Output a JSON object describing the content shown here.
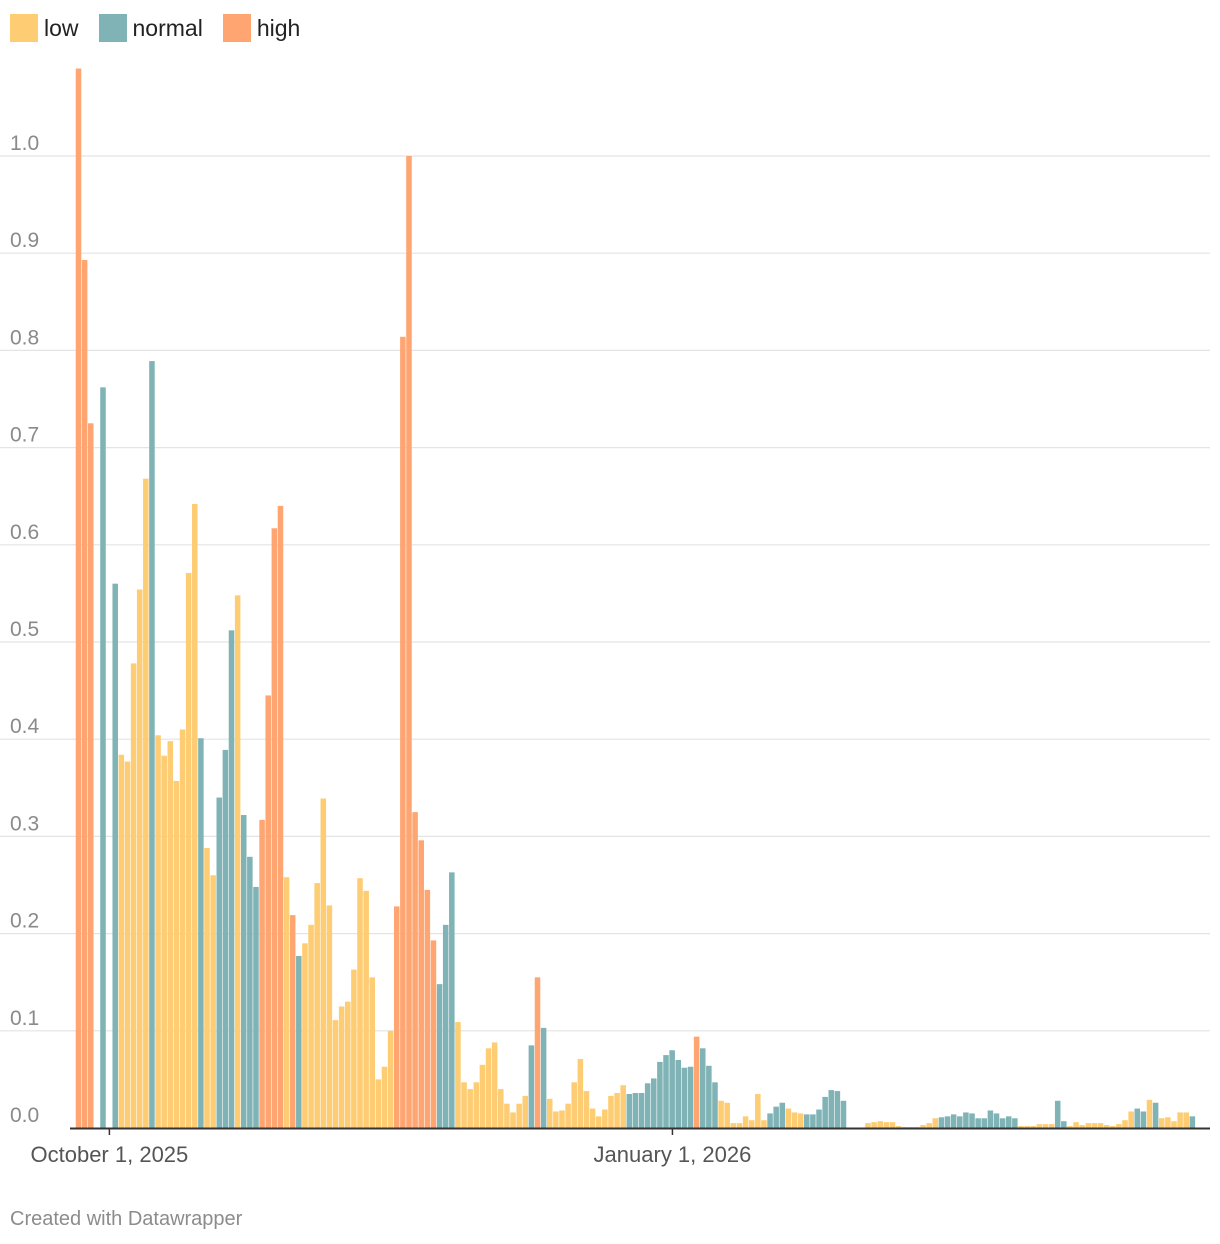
{
  "chart_data": {
    "type": "bar",
    "title": "",
    "xlabel": "",
    "ylabel": "",
    "ylim": [
      0,
      1.1
    ],
    "y_ticks": [
      "0.0",
      "0.1",
      "0.2",
      "0.3",
      "0.4",
      "0.5",
      "0.6",
      "0.7",
      "0.8",
      "0.9",
      "1.0"
    ],
    "x_tick_labels": [
      {
        "label": "October 1, 2025",
        "day_index": 0
      },
      {
        "label": "January 1, 2026",
        "day_index": 92
      }
    ],
    "grid": true,
    "legend_position": "top-left",
    "legend": [
      {
        "key": "low",
        "label": "low",
        "color": "#fecc72"
      },
      {
        "key": "normal",
        "label": "normal",
        "color": "#7fb3b5"
      },
      {
        "key": "high",
        "label": "high",
        "color": "#fea572"
      }
    ],
    "category_colors": {
      "low": "#fecc72",
      "normal": "#7fb3b5",
      "high": "#fea572"
    },
    "first_day_index": -5,
    "values": [
      1.09,
      0.893,
      0.725,
      0,
      0.762,
      0,
      0.56,
      0.384,
      0.377,
      0.478,
      0.554,
      0.668,
      0.789,
      0.404,
      0.383,
      0.398,
      0.357,
      0.41,
      0.571,
      0.642,
      0.401,
      0.288,
      0.26,
      0.34,
      0.389,
      0.512,
      0.548,
      0.322,
      0.279,
      0.248,
      0.317,
      0.445,
      0.617,
      0.64,
      0.258,
      0.219,
      0.177,
      0.19,
      0.209,
      0.252,
      0.339,
      0.229,
      0.111,
      0.125,
      0.13,
      0.163,
      0.257,
      0.244,
      0.155,
      0.05,
      0.063,
      0.1,
      0.228,
      0.814,
      1.0,
      0.325,
      0.296,
      0.245,
      0.193,
      0.148,
      0.209,
      0.263,
      0.109,
      0.047,
      0.04,
      0.047,
      0.065,
      0.082,
      0.088,
      0.04,
      0.025,
      0.016,
      0.025,
      0.033,
      0.085,
      0.155,
      0.103,
      0.03,
      0.017,
      0.018,
      0.025,
      0.047,
      0.071,
      0.038,
      0.02,
      0.012,
      0.019,
      0.033,
      0.036,
      0.044,
      0.035,
      0.036,
      0.036,
      0.046,
      0.051,
      0.068,
      0.075,
      0.08,
      0.07,
      0.062,
      0.063,
      0.094,
      0.082,
      0.064,
      0.047,
      0.028,
      0.026,
      0.005,
      0.005,
      0.012,
      0.008,
      0.035,
      0.008,
      0.015,
      0.022,
      0.026,
      0.02,
      0.016,
      0.015,
      0.014,
      0.014,
      0.019,
      0.032,
      0.039,
      0.038,
      0.028,
      0,
      0,
      0,
      0.005,
      0.006,
      0.007,
      0.006,
      0.006,
      0.002,
      0.001,
      0.001,
      0.001,
      0.003,
      0.005,
      0.01,
      0.011,
      0.012,
      0.014,
      0.012,
      0.016,
      0.015,
      0.01,
      0.01,
      0.018,
      0.015,
      0.01,
      0.012,
      0.01,
      0.002,
      0.002,
      0.002,
      0.004,
      0.004,
      0.004,
      0.028,
      0.007,
      0.002,
      0.006,
      0.003,
      0.005,
      0.005,
      0.005,
      0.003,
      0.002,
      0.004,
      0.008,
      0.017,
      0.02,
      0.017,
      0.029,
      0.026,
      0.01,
      0.011,
      0.007,
      0.016,
      0.016,
      0.012
    ],
    "categories": [
      "high",
      "high",
      "high",
      "low",
      "normal",
      "low",
      "normal",
      "low",
      "low",
      "low",
      "low",
      "low",
      "normal",
      "low",
      "low",
      "low",
      "low",
      "low",
      "low",
      "low",
      "normal",
      "low",
      "low",
      "normal",
      "normal",
      "normal",
      "low",
      "normal",
      "normal",
      "normal",
      "high",
      "high",
      "high",
      "high",
      "low",
      "high",
      "normal",
      "low",
      "low",
      "low",
      "low",
      "low",
      "low",
      "low",
      "low",
      "low",
      "low",
      "low",
      "low",
      "low",
      "low",
      "low",
      "high",
      "high",
      "high",
      "high",
      "high",
      "high",
      "high",
      "normal",
      "normal",
      "normal",
      "low",
      "low",
      "low",
      "low",
      "low",
      "low",
      "low",
      "low",
      "low",
      "low",
      "low",
      "low",
      "normal",
      "high",
      "normal",
      "low",
      "low",
      "low",
      "low",
      "low",
      "low",
      "low",
      "low",
      "low",
      "low",
      "low",
      "low",
      "low",
      "normal",
      "normal",
      "normal",
      "normal",
      "normal",
      "normal",
      "normal",
      "normal",
      "normal",
      "normal",
      "normal",
      "high",
      "normal",
      "normal",
      "normal",
      "low",
      "low",
      "low",
      "low",
      "low",
      "low",
      "low",
      "low",
      "normal",
      "normal",
      "normal",
      "low",
      "low",
      "low",
      "normal",
      "normal",
      "normal",
      "normal",
      "normal",
      "normal",
      "normal",
      "low",
      "low",
      "low",
      "low",
      "low",
      "low",
      "low",
      "low",
      "low",
      "low",
      "low",
      "low",
      "low",
      "low",
      "low",
      "normal",
      "normal",
      "normal",
      "normal",
      "normal",
      "normal",
      "normal",
      "normal",
      "normal",
      "normal",
      "normal",
      "normal",
      "normal",
      "low",
      "low",
      "low",
      "low",
      "low",
      "low",
      "normal",
      "normal",
      "low",
      "low",
      "low",
      "low",
      "low",
      "low",
      "low",
      "low",
      "low",
      "low",
      "low",
      "normal",
      "normal",
      "low",
      "normal",
      "low",
      "low",
      "low",
      "low",
      "low",
      "normal"
    ]
  },
  "footer": {
    "credit": "Created with Datawrapper"
  }
}
